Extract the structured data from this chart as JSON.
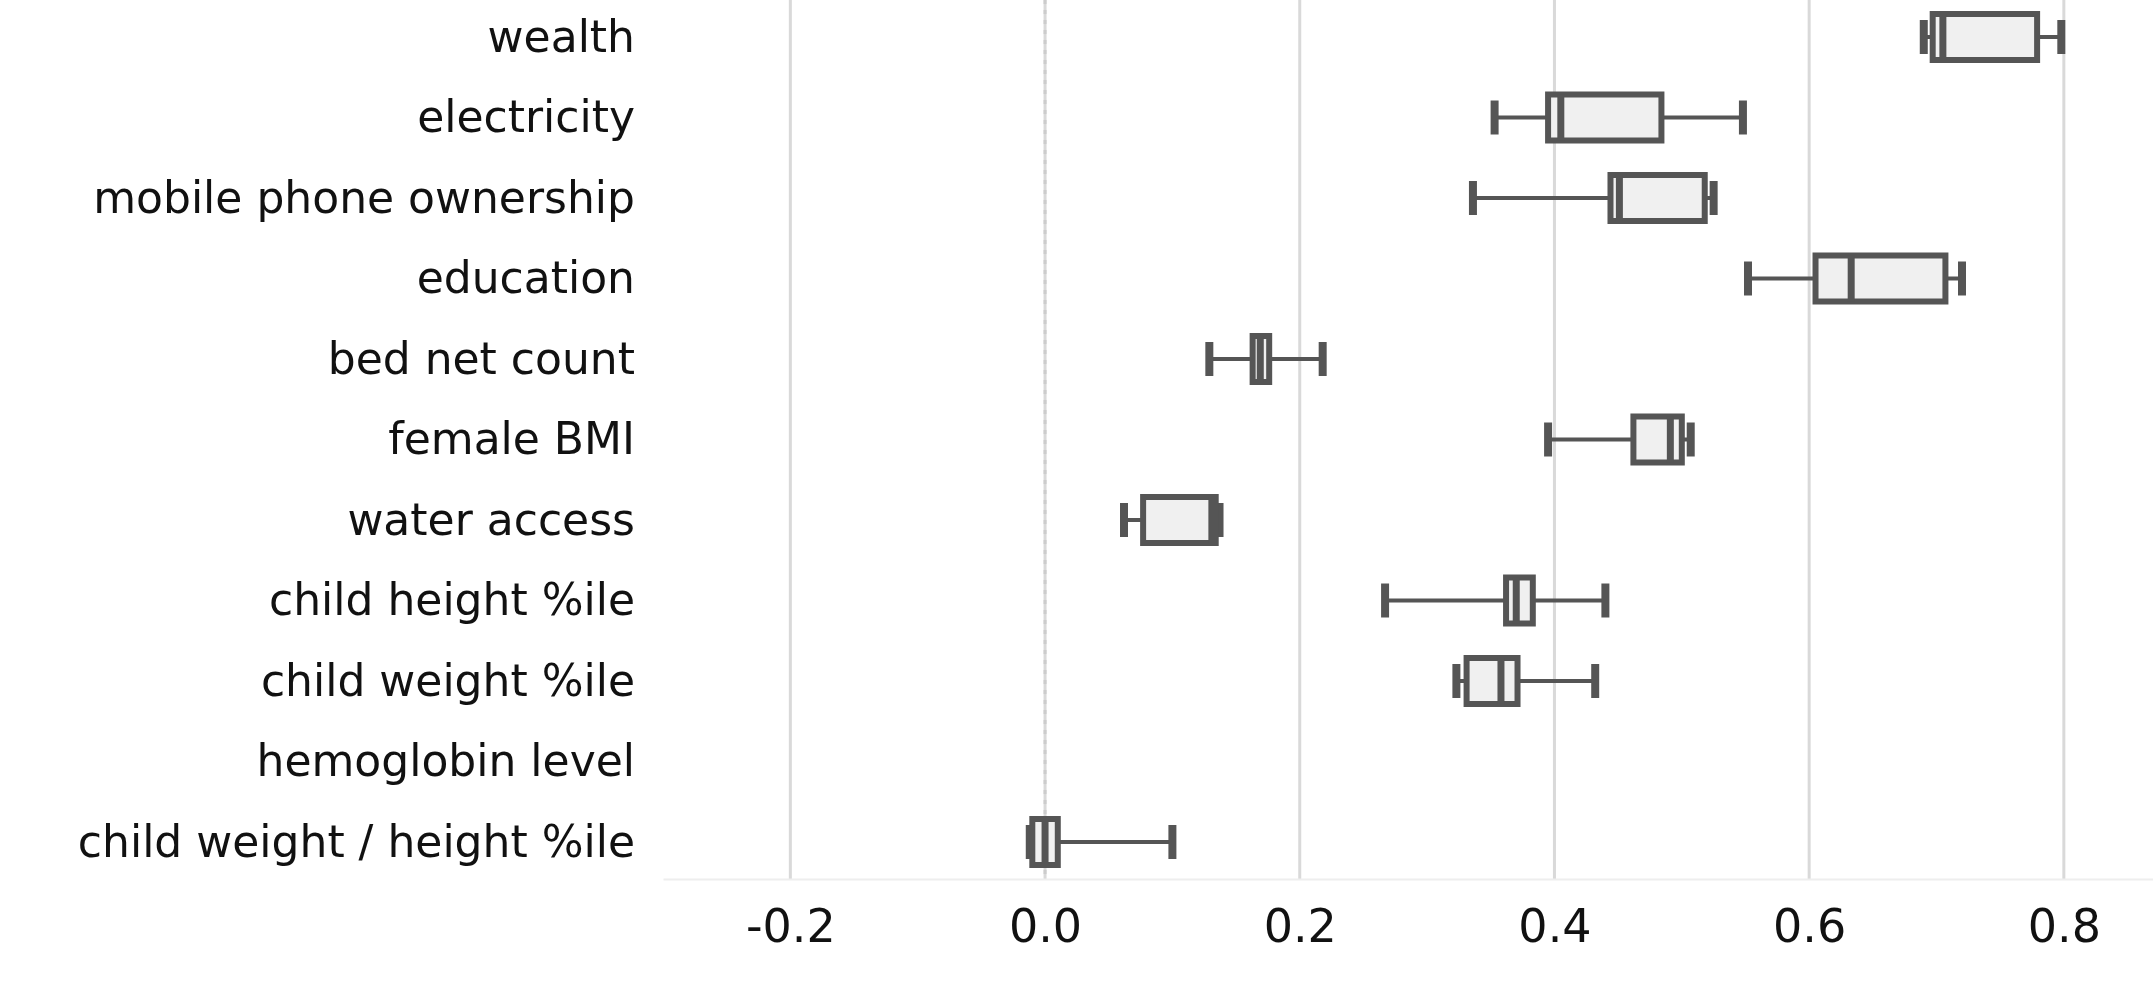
{
  "chart_data": {
    "type": "box",
    "orientation": "horizontal",
    "categories": [
      "wealth",
      "electricity",
      "mobile phone ownership",
      "education",
      "bed net count",
      "female BMI",
      "water access",
      "child height %ile",
      "child weight %ile",
      "hemoglobin level",
      "child weight / height %ile"
    ],
    "boxes": [
      {
        "low": 0.69,
        "q1": 0.697,
        "median": 0.705,
        "q3": 0.779,
        "high": 0.798
      },
      {
        "low": 0.353,
        "q1": 0.395,
        "median": 0.405,
        "q3": 0.484,
        "high": 0.548
      },
      {
        "low": 0.336,
        "q1": 0.444,
        "median": 0.451,
        "q3": 0.518,
        "high": 0.525
      },
      {
        "low": 0.552,
        "q1": 0.605,
        "median": 0.633,
        "q3": 0.707,
        "high": 0.72
      },
      {
        "low": 0.129,
        "q1": 0.163,
        "median": 0.169,
        "q3": 0.176,
        "high": 0.218
      },
      {
        "low": 0.395,
        "q1": 0.462,
        "median": 0.491,
        "q3": 0.5,
        "high": 0.507
      },
      {
        "low": 0.062,
        "q1": 0.077,
        "median": 0.131,
        "q3": 0.134,
        "high": 0.137
      },
      {
        "low": 0.267,
        "q1": 0.362,
        "median": 0.37,
        "q3": 0.383,
        "high": 0.44
      },
      {
        "low": 0.323,
        "q1": 0.331,
        "median": 0.358,
        "q3": 0.371,
        "high": 0.432
      },
      null,
      {
        "low": -0.012,
        "q1": -0.01,
        "median": 0.0,
        "q3": 0.01,
        "high": 0.1
      }
    ],
    "color": "#555555",
    "xlim": [
      -0.3,
      0.87
    ],
    "xticks": [
      {
        "value": -0.2,
        "label": "-0.2"
      },
      {
        "value": 0,
        "label": "0.0"
      },
      {
        "value": 0.2,
        "label": "0.2"
      },
      {
        "value": 0.4,
        "label": "0.4"
      },
      {
        "value": 0.6,
        "label": "0.6"
      },
      {
        "value": 0.8,
        "label": "0.8"
      }
    ],
    "grid": "x",
    "ref_lines": [
      {
        "axis": "x",
        "value": 0,
        "line_style": "dotted",
        "color": "#cccccc"
      }
    ]
  }
}
